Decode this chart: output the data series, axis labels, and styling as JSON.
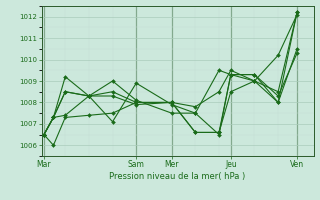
{
  "title": "Pression niveau de la mer( hPa )",
  "bg_color": "#cce8dc",
  "line_color": "#1a6b1a",
  "grid_major_color": "#aaccbb",
  "grid_minor_color": "#c4ddd4",
  "vline_color": "#2a5a2a",
  "ylim": [
    1005.5,
    1012.5
  ],
  "yticks": [
    1006,
    1007,
    1008,
    1009,
    1010,
    1011,
    1012
  ],
  "xtick_labels": [
    "Mar",
    "Sam",
    "Mer",
    "Jeu",
    "Ven"
  ],
  "xtick_positions": [
    1,
    40,
    55,
    80,
    108
  ],
  "xlim": [
    0,
    115
  ],
  "series": [
    {
      "x": [
        1,
        5,
        10,
        20,
        30,
        40,
        55,
        65,
        75,
        80,
        90,
        100,
        108
      ],
      "y": [
        1006.5,
        1006.0,
        1007.3,
        1007.4,
        1007.5,
        1008.0,
        1008.0,
        1007.8,
        1008.5,
        1009.5,
        1009.0,
        1010.2,
        1012.1
      ]
    },
    {
      "x": [
        1,
        5,
        10,
        20,
        30,
        40,
        55,
        65,
        75,
        80,
        90,
        100,
        108
      ],
      "y": [
        1006.5,
        1007.3,
        1007.4,
        1008.3,
        1008.5,
        1008.0,
        1008.0,
        1006.6,
        1006.6,
        1008.5,
        1009.0,
        1008.5,
        1012.2
      ]
    },
    {
      "x": [
        1,
        5,
        10,
        20,
        30,
        40,
        55,
        65,
        75,
        80,
        90,
        100,
        108
      ],
      "y": [
        1006.5,
        1007.3,
        1009.2,
        1008.3,
        1007.1,
        1008.9,
        1007.9,
        1007.5,
        1006.5,
        1009.3,
        1009.3,
        1008.3,
        1010.3
      ]
    },
    {
      "x": [
        1,
        5,
        10,
        20,
        30,
        40,
        55,
        65,
        75,
        80,
        90,
        100,
        108
      ],
      "y": [
        1006.5,
        1007.3,
        1008.5,
        1008.3,
        1008.3,
        1007.9,
        1008.0,
        1006.6,
        1006.6,
        1009.3,
        1009.3,
        1008.0,
        1010.5
      ]
    },
    {
      "x": [
        1,
        5,
        10,
        20,
        30,
        40,
        55,
        65,
        75,
        80,
        90,
        100,
        108
      ],
      "y": [
        1006.5,
        1007.3,
        1008.5,
        1008.3,
        1009.0,
        1008.1,
        1007.5,
        1007.5,
        1009.5,
        1009.3,
        1009.0,
        1008.0,
        1012.2
      ]
    }
  ]
}
